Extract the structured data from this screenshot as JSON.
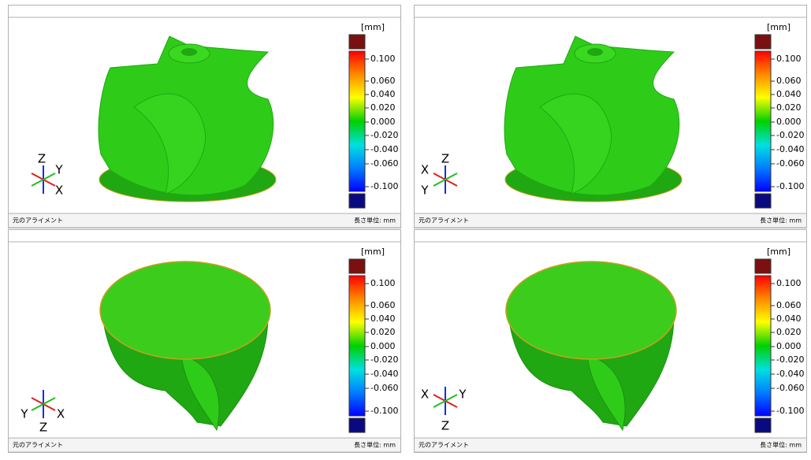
{
  "panels": [
    {
      "unit": "[mm]",
      "scale": [
        "0.100",
        "0.060",
        "0.040",
        "0.020",
        "0.000",
        "-0.020",
        "-0.040",
        "-0.060",
        "-0.100"
      ],
      "axes": [
        "Z",
        "Y",
        "X"
      ],
      "footer_left": "元のアライメント",
      "footer_right": "長さ単位: mm"
    },
    {
      "unit": "[mm]",
      "scale": [
        "0.100",
        "0.060",
        "0.040",
        "0.020",
        "0.000",
        "-0.020",
        "-0.040",
        "-0.060",
        "-0.100"
      ],
      "axes": [
        "Z",
        "X",
        "Y"
      ],
      "footer_left": "元のアライメント",
      "footer_right": "長さ単位: mm"
    },
    {
      "unit": "[mm]",
      "scale": [
        "0.100",
        "0.060",
        "0.040",
        "0.020",
        "0.000",
        "-0.020",
        "-0.040",
        "-0.060",
        "-0.100"
      ],
      "axes": [
        "Y",
        "X",
        "Z"
      ],
      "footer_left": "元のアライメント",
      "footer_right": "長さ単位: mm"
    },
    {
      "unit": "[mm]",
      "scale": [
        "0.100",
        "0.060",
        "0.040",
        "0.020",
        "0.000",
        "-0.020",
        "-0.040",
        "-0.060",
        "-0.100"
      ],
      "axes": [
        "X",
        "Y",
        "Z"
      ],
      "footer_left": "元のアライメント",
      "footer_right": "長さ単位: mm"
    }
  ]
}
